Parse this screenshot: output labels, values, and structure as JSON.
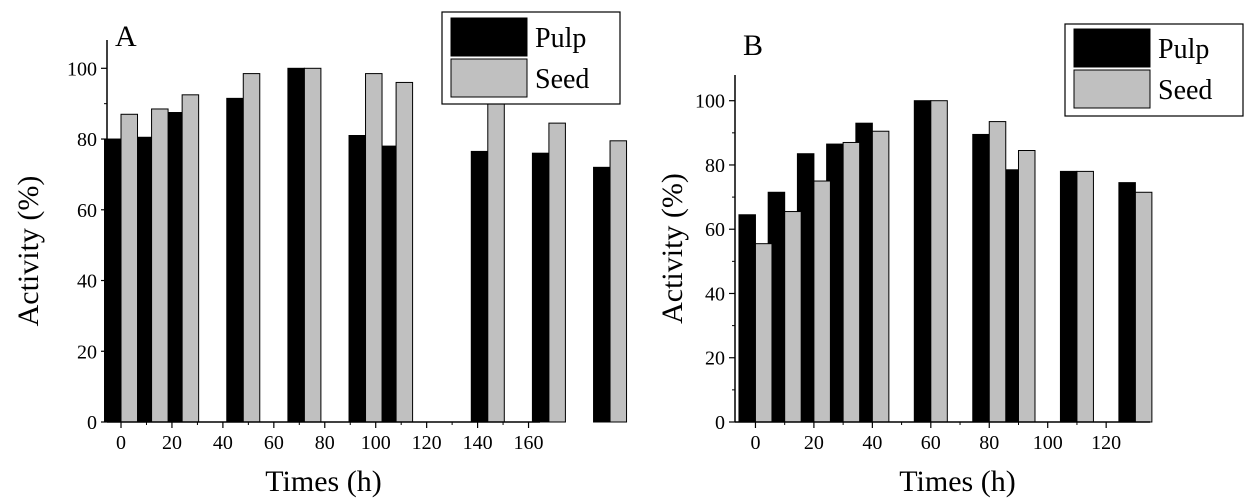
{
  "chart_data": [
    {
      "type": "bar",
      "panel_label": "A",
      "xlabel": "Times (h)",
      "ylabel": "Activity (%)",
      "ylim": [
        0,
        108
      ],
      "xlim": [
        -5.5,
        164.5
      ],
      "xticks": [
        0,
        20,
        40,
        60,
        80,
        100,
        120,
        140,
        160
      ],
      "yticks": [
        0,
        20,
        40,
        60,
        80,
        100
      ],
      "legend_position": "top-right",
      "series": [
        {
          "name": "Pulp",
          "color": "#000000",
          "x": [
            0,
            12,
            24,
            48,
            72,
            96,
            108,
            144,
            168
          ],
          "values": [
            80,
            80.5,
            87.5,
            91.5,
            100,
            81,
            78,
            76.5,
            76
          ]
        },
        {
          "name": "Seed",
          "color": "#c0c0c0",
          "x": [
            0,
            12,
            24,
            48,
            72,
            96,
            108,
            144,
            168
          ],
          "values": [
            87,
            88.5,
            92.5,
            98.5,
            100,
            98.5,
            96,
            91.5,
            84.5
          ]
        }
      ],
      "extra_bars": [
        {
          "series": "Pulp",
          "x": 192,
          "value": 72
        },
        {
          "series": "Seed",
          "x": 192,
          "value": 79.5
        }
      ]
    },
    {
      "type": "bar",
      "panel_label": "B",
      "xlabel": "Times (h)",
      "ylabel": "Activity (%)",
      "ylim": [
        0,
        108
      ],
      "xlim": [
        -7,
        135
      ],
      "xticks": [
        0,
        20,
        40,
        60,
        80,
        100,
        120
      ],
      "yticks": [
        0,
        20,
        40,
        60,
        80,
        100
      ],
      "legend_position": "top-right",
      "series": [
        {
          "name": "Pulp",
          "color": "#000000",
          "x": [
            0,
            10,
            20,
            30,
            40,
            60,
            80,
            90,
            110,
            130
          ],
          "values": [
            64.5,
            71.5,
            83.5,
            86.5,
            93,
            100,
            89.5,
            78.5,
            78,
            74.5
          ]
        },
        {
          "name": "Seed",
          "color": "#c0c0c0",
          "x": [
            0,
            10,
            20,
            30,
            40,
            60,
            80,
            90,
            110,
            130
          ],
          "values": [
            55.5,
            65.5,
            75,
            87,
            90.5,
            100,
            93.5,
            84.5,
            78,
            71.5
          ]
        }
      ]
    }
  ]
}
